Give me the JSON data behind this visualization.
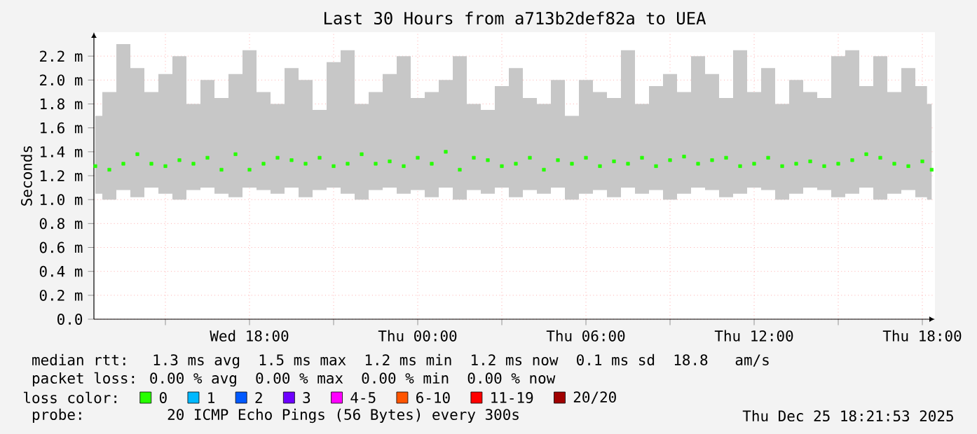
{
  "chart_data": {
    "type": "scatter",
    "title": "Last 30 Hours from a713b2def82a to UEA",
    "ylabel": "Seconds",
    "xlim": [
      "2025-12-24T12:27",
      "2025-12-25T18:27"
    ],
    "xticks": [
      {
        "value": "2025-12-24T15:00",
        "label": null
      },
      {
        "value": "2025-12-24T18:00",
        "label": "Wed 18:00"
      },
      {
        "value": "2025-12-24T21:00",
        "label": null
      },
      {
        "value": "2025-12-25T00:00",
        "label": "Thu 00:00"
      },
      {
        "value": "2025-12-25T03:00",
        "label": null
      },
      {
        "value": "2025-12-25T06:00",
        "label": "Thu 06:00"
      },
      {
        "value": "2025-12-25T09:00",
        "label": null
      },
      {
        "value": "2025-12-25T12:00",
        "label": "Thu 12:00"
      },
      {
        "value": "2025-12-25T15:00",
        "label": null
      },
      {
        "value": "2025-12-25T18:00",
        "label": "Thu 18:00"
      }
    ],
    "ylim": [
      0,
      2.4
    ],
    "yticks": [
      {
        "value": 0,
        "label": "0.0"
      },
      {
        "value": 0.2,
        "label": "0.2 m"
      },
      {
        "value": 0.4,
        "label": "0.4 m"
      },
      {
        "value": 0.6,
        "label": "0.6 m"
      },
      {
        "value": 0.8,
        "label": "0.8 m"
      },
      {
        "value": 1.0,
        "label": "1.0 m"
      },
      {
        "value": 1.2,
        "label": "1.2 m"
      },
      {
        "value": 1.4,
        "label": "1.4 m"
      },
      {
        "value": 1.6,
        "label": "1.6 m"
      },
      {
        "value": 1.8,
        "label": "1.8 m"
      },
      {
        "value": 2.0,
        "label": "2.0 m"
      },
      {
        "value": 2.2,
        "label": "2.2 m"
      }
    ],
    "grid": true,
    "marker": "square",
    "legend": "bottom",
    "legend_title": "loss color:",
    "x": [
      "2025-12-24T12:30",
      "2025-12-24T13:00",
      "2025-12-24T13:30",
      "2025-12-24T14:00",
      "2025-12-24T14:30",
      "2025-12-24T15:00",
      "2025-12-24T15:30",
      "2025-12-24T16:00",
      "2025-12-24T16:30",
      "2025-12-24T17:00",
      "2025-12-24T17:30",
      "2025-12-24T18:00",
      "2025-12-24T18:30",
      "2025-12-24T19:00",
      "2025-12-24T19:30",
      "2025-12-24T20:00",
      "2025-12-24T20:30",
      "2025-12-24T21:00",
      "2025-12-24T21:30",
      "2025-12-24T22:00",
      "2025-12-24T22:30",
      "2025-12-24T23:00",
      "2025-12-24T23:30",
      "2025-12-25T00:00",
      "2025-12-25T00:30",
      "2025-12-25T01:00",
      "2025-12-25T01:30",
      "2025-12-25T02:00",
      "2025-12-25T02:30",
      "2025-12-25T03:00",
      "2025-12-25T03:30",
      "2025-12-25T04:00",
      "2025-12-25T04:30",
      "2025-12-25T05:00",
      "2025-12-25T05:30",
      "2025-12-25T06:00",
      "2025-12-25T06:30",
      "2025-12-25T07:00",
      "2025-12-25T07:30",
      "2025-12-25T08:00",
      "2025-12-25T08:30",
      "2025-12-25T09:00",
      "2025-12-25T09:30",
      "2025-12-25T10:00",
      "2025-12-25T10:30",
      "2025-12-25T11:00",
      "2025-12-25T11:30",
      "2025-12-25T12:00",
      "2025-12-25T12:30",
      "2025-12-25T13:00",
      "2025-12-25T13:30",
      "2025-12-25T14:00",
      "2025-12-25T14:30",
      "2025-12-25T15:00",
      "2025-12-25T15:30",
      "2025-12-25T16:00",
      "2025-12-25T16:30",
      "2025-12-25T17:00",
      "2025-12-25T17:30",
      "2025-12-25T18:00",
      "2025-12-25T18:20"
    ],
    "series": [
      {
        "name": "0",
        "color": "#26ff00",
        "values": [
          1.28,
          1.25,
          1.3,
          1.38,
          1.3,
          1.28,
          1.33,
          1.3,
          1.35,
          1.25,
          1.38,
          1.25,
          1.3,
          1.35,
          1.33,
          1.3,
          1.35,
          1.28,
          1.3,
          1.38,
          1.3,
          1.32,
          1.28,
          1.35,
          1.3,
          1.4,
          1.25,
          1.35,
          1.33,
          1.28,
          1.3,
          1.35,
          1.25,
          1.33,
          1.3,
          1.35,
          1.28,
          1.32,
          1.3,
          1.35,
          1.28,
          1.33,
          1.36,
          1.3,
          1.33,
          1.35,
          1.28,
          1.3,
          1.35,
          1.28,
          1.3,
          1.32,
          1.28,
          1.3,
          1.33,
          1.38,
          1.35,
          1.3,
          1.28,
          1.32,
          1.25
        ],
        "lower": [
          1.05,
          1.0,
          1.08,
          1.02,
          1.1,
          1.05,
          1.0,
          1.08,
          1.1,
          1.05,
          1.02,
          1.1,
          1.08,
          1.05,
          1.1,
          1.02,
          1.08,
          1.1,
          1.05,
          1.0,
          1.08,
          1.1,
          1.05,
          1.08,
          1.02,
          1.1,
          1.0,
          1.08,
          1.05,
          1.1,
          1.02,
          1.08,
          1.05,
          1.1,
          1.0,
          1.05,
          1.08,
          1.02,
          1.1,
          1.05,
          1.08,
          1.0,
          1.05,
          1.1,
          1.08,
          1.02,
          1.05,
          1.1,
          1.08,
          1.0,
          1.05,
          1.1,
          1.08,
          1.02,
          1.05,
          1.1,
          1.0,
          1.05,
          1.08,
          1.02,
          1.0
        ],
        "upper": [
          1.7,
          1.9,
          2.3,
          2.1,
          1.9,
          2.05,
          2.2,
          1.8,
          2.0,
          1.85,
          2.05,
          2.25,
          1.9,
          1.8,
          2.1,
          2.0,
          1.75,
          2.15,
          2.25,
          1.8,
          1.9,
          2.05,
          2.2,
          1.85,
          1.9,
          2.0,
          2.2,
          1.8,
          1.75,
          1.95,
          2.1,
          1.85,
          1.8,
          2.0,
          1.7,
          2.0,
          1.9,
          1.85,
          2.25,
          1.8,
          1.95,
          2.05,
          1.9,
          2.2,
          2.05,
          1.85,
          2.25,
          1.9,
          2.1,
          1.8,
          2.0,
          1.9,
          1.85,
          2.2,
          2.25,
          1.95,
          2.2,
          1.9,
          2.1,
          1.95,
          1.8
        ]
      },
      {
        "name": "1",
        "color": "#00b8ff",
        "values": [
          null,
          null,
          null,
          null,
          null,
          null,
          null,
          null,
          null,
          null,
          null,
          null,
          null,
          null,
          null,
          null,
          null,
          null,
          null,
          null,
          null,
          null,
          null,
          null,
          null,
          null,
          null,
          null,
          null,
          null,
          null,
          null,
          null,
          null,
          null,
          null,
          null,
          null,
          null,
          null,
          null,
          null,
          null,
          null,
          null,
          null,
          null,
          null,
          null,
          null,
          null,
          null,
          null,
          null,
          null,
          null,
          null,
          null,
          null,
          null,
          null
        ]
      },
      {
        "name": "2",
        "color": "#0059ff",
        "values": [
          null,
          null,
          null,
          null,
          null,
          null,
          null,
          null,
          null,
          null,
          null,
          null,
          null,
          null,
          null,
          null,
          null,
          null,
          null,
          null,
          null,
          null,
          null,
          null,
          null,
          null,
          null,
          null,
          null,
          null,
          null,
          null,
          null,
          null,
          null,
          null,
          null,
          null,
          null,
          null,
          null,
          null,
          null,
          null,
          null,
          null,
          null,
          null,
          null,
          null,
          null,
          null,
          null,
          null,
          null,
          null,
          null,
          null,
          null,
          null,
          null
        ]
      },
      {
        "name": "3",
        "color": "#6e00ff",
        "values": [
          null,
          null,
          null,
          null,
          null,
          null,
          null,
          null,
          null,
          null,
          null,
          null,
          null,
          null,
          null,
          null,
          null,
          null,
          null,
          null,
          null,
          null,
          null,
          null,
          null,
          null,
          null,
          null,
          null,
          null,
          null,
          null,
          null,
          null,
          null,
          null,
          null,
          null,
          null,
          null,
          null,
          null,
          null,
          null,
          null,
          null,
          null,
          null,
          null,
          null,
          null,
          null,
          null,
          null,
          null,
          null,
          null,
          null,
          null,
          null,
          null
        ]
      },
      {
        "name": "4-5",
        "color": "#ff00ff",
        "values": [
          null,
          null,
          null,
          null,
          null,
          null,
          null,
          null,
          null,
          null,
          null,
          null,
          null,
          null,
          null,
          null,
          null,
          null,
          null,
          null,
          null,
          null,
          null,
          null,
          null,
          null,
          null,
          null,
          null,
          null,
          null,
          null,
          null,
          null,
          null,
          null,
          null,
          null,
          null,
          null,
          null,
          null,
          null,
          null,
          null,
          null,
          null,
          null,
          null,
          null,
          null,
          null,
          null,
          null,
          null,
          null,
          null,
          null,
          null,
          null,
          null
        ]
      },
      {
        "name": "6-10",
        "color": "#ff5500",
        "values": [
          null,
          null,
          null,
          null,
          null,
          null,
          null,
          null,
          null,
          null,
          null,
          null,
          null,
          null,
          null,
          null,
          null,
          null,
          null,
          null,
          null,
          null,
          null,
          null,
          null,
          null,
          null,
          null,
          null,
          null,
          null,
          null,
          null,
          null,
          null,
          null,
          null,
          null,
          null,
          null,
          null,
          null,
          null,
          null,
          null,
          null,
          null,
          null,
          null,
          null,
          null,
          null,
          null,
          null,
          null,
          null,
          null,
          null,
          null,
          null,
          null
        ]
      },
      {
        "name": "11-19",
        "color": "#ff0000",
        "values": [
          null,
          null,
          null,
          null,
          null,
          null,
          null,
          null,
          null,
          null,
          null,
          null,
          null,
          null,
          null,
          null,
          null,
          null,
          null,
          null,
          null,
          null,
          null,
          null,
          null,
          null,
          null,
          null,
          null,
          null,
          null,
          null,
          null,
          null,
          null,
          null,
          null,
          null,
          null,
          null,
          null,
          null,
          null,
          null,
          null,
          null,
          null,
          null,
          null,
          null,
          null,
          null,
          null,
          null,
          null,
          null,
          null,
          null,
          null,
          null,
          null
        ]
      },
      {
        "name": "20/20",
        "color": "#a00000",
        "values": [
          null,
          null,
          null,
          null,
          null,
          null,
          null,
          null,
          null,
          null,
          null,
          null,
          null,
          null,
          null,
          null,
          null,
          null,
          null,
          null,
          null,
          null,
          null,
          null,
          null,
          null,
          null,
          null,
          null,
          null,
          null,
          null,
          null,
          null,
          null,
          null,
          null,
          null,
          null,
          null,
          null,
          null,
          null,
          null,
          null,
          null,
          null,
          null,
          null,
          null,
          null,
          null,
          null,
          null,
          null,
          null,
          null,
          null,
          null,
          null,
          null
        ]
      }
    ],
    "annotations": [
      "median rtt:  1.3 ms avg  1.5 ms max  1.2 ms min  1.2 ms now  0.1 ms sd  18.8   am/s",
      "packet loss: 0.00 % avg  0.00 % max  0.00 % min  0.00 % now",
      "probe:       20 ICMP Echo Pings (56 Bytes) every 300s",
      "Thu Dec 25 18:21:53 2025"
    ]
  }
}
